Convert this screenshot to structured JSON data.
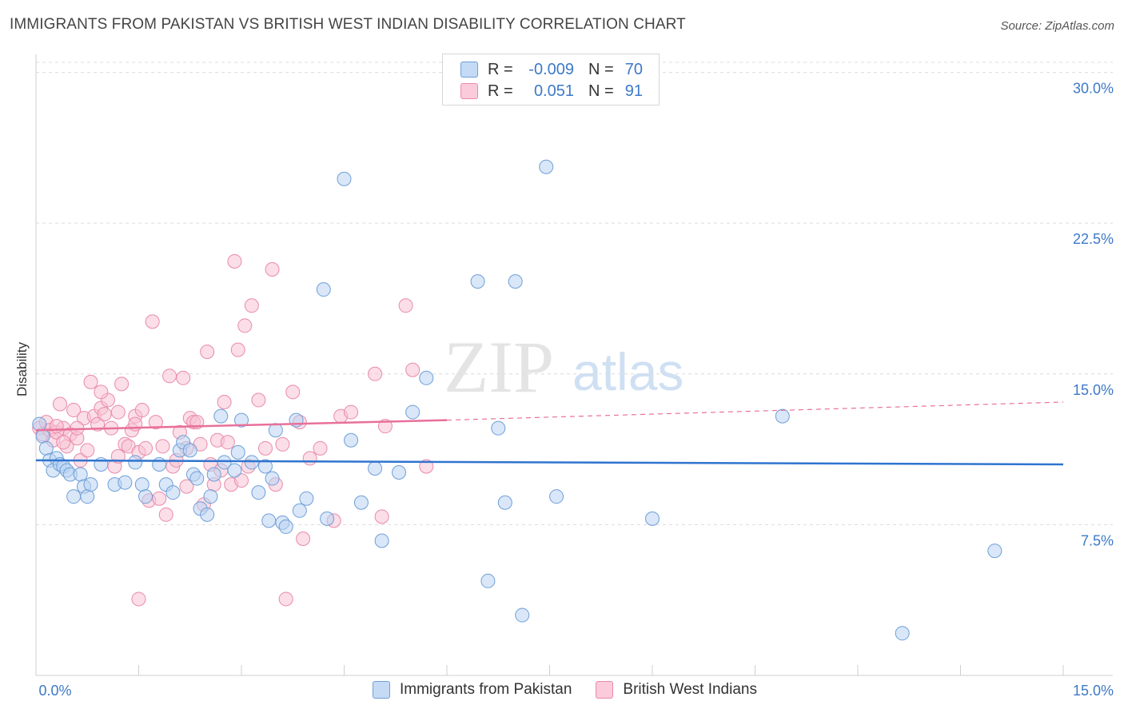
{
  "title": "IMMIGRANTS FROM PAKISTAN VS BRITISH WEST INDIAN DISABILITY CORRELATION CHART",
  "source": "Source: ZipAtlas.com",
  "colors": {
    "blue_fill": "#b9d3f2",
    "blue_stroke": "#6f9fd8",
    "blue_line": "#2f74cf",
    "pink_fill": "#f8c2d4",
    "pink_stroke": "#e98aaa",
    "pink_line": "#e8709a",
    "grid": "#dcdcdc",
    "axis_text": "#3d79c8"
  },
  "legend": {
    "rows": [
      {
        "r_label": "R =",
        "r_value": "-0.009",
        "n_label": "N =",
        "n_value": "70"
      },
      {
        "r_label": "R =",
        "r_value": "0.051",
        "n_label": "N =",
        "n_value": "91"
      }
    ]
  },
  "watermark": {
    "zip": "ZIP",
    "atlas": "atlas"
  },
  "chart_data": {
    "type": "scatter",
    "title": "IMMIGRANTS FROM PAKISTAN VS BRITISH WEST INDIAN DISABILITY CORRELATION CHART",
    "xlabel": "",
    "ylabel": "Disability",
    "xlim": [
      0,
      15
    ],
    "ylim": [
      0,
      30.5
    ],
    "x_tick_labels": [
      "0.0%",
      "15.0%"
    ],
    "y_ticks": [
      7.5,
      15.0,
      22.5,
      30.0
    ],
    "y_tick_labels": [
      "7.5%",
      "15.0%",
      "22.5%",
      "30.0%"
    ],
    "grid": true,
    "legend_position": "top-center",
    "series": [
      {
        "name": "Immigrants from Pakistan",
        "color": "blue",
        "trend": {
          "x0": 0.0,
          "y0": 10.7,
          "x1": 15.0,
          "y1": 10.5
        },
        "points": [
          [
            0.05,
            12.5
          ],
          [
            0.1,
            11.9
          ],
          [
            0.15,
            11.3
          ],
          [
            0.2,
            10.7
          ],
          [
            0.25,
            10.2
          ],
          [
            0.3,
            10.8
          ],
          [
            0.35,
            10.5
          ],
          [
            0.4,
            10.4
          ],
          [
            0.45,
            10.2
          ],
          [
            0.5,
            10.0
          ],
          [
            0.55,
            8.9
          ],
          [
            0.65,
            10.0
          ],
          [
            0.7,
            9.4
          ],
          [
            0.75,
            8.9
          ],
          [
            0.8,
            9.5
          ],
          [
            0.95,
            10.5
          ],
          [
            1.15,
            9.5
          ],
          [
            1.3,
            9.6
          ],
          [
            1.45,
            10.6
          ],
          [
            1.55,
            9.5
          ],
          [
            1.6,
            8.9
          ],
          [
            1.8,
            10.5
          ],
          [
            1.9,
            9.5
          ],
          [
            2.0,
            9.1
          ],
          [
            2.1,
            11.2
          ],
          [
            2.15,
            11.6
          ],
          [
            2.25,
            11.2
          ],
          [
            2.3,
            10.0
          ],
          [
            2.35,
            9.8
          ],
          [
            2.4,
            8.3
          ],
          [
            2.5,
            8.0
          ],
          [
            2.55,
            8.9
          ],
          [
            2.6,
            10.0
          ],
          [
            2.7,
            12.9
          ],
          [
            2.75,
            10.6
          ],
          [
            2.9,
            10.2
          ],
          [
            2.95,
            11.1
          ],
          [
            3.0,
            12.7
          ],
          [
            3.15,
            10.6
          ],
          [
            3.25,
            9.1
          ],
          [
            3.35,
            10.4
          ],
          [
            3.4,
            7.7
          ],
          [
            3.45,
            9.8
          ],
          [
            3.5,
            12.2
          ],
          [
            3.6,
            7.6
          ],
          [
            3.65,
            7.4
          ],
          [
            3.8,
            12.7
          ],
          [
            3.85,
            8.2
          ],
          [
            3.95,
            8.8
          ],
          [
            4.2,
            19.2
          ],
          [
            4.25,
            7.8
          ],
          [
            4.5,
            24.7
          ],
          [
            4.6,
            11.7
          ],
          [
            4.75,
            8.6
          ],
          [
            4.95,
            10.3
          ],
          [
            5.05,
            6.7
          ],
          [
            5.3,
            10.1
          ],
          [
            5.5,
            13.1
          ],
          [
            5.7,
            14.8
          ],
          [
            6.45,
            19.6
          ],
          [
            6.6,
            4.7
          ],
          [
            6.75,
            12.3
          ],
          [
            6.85,
            8.6
          ],
          [
            7.0,
            19.6
          ],
          [
            7.1,
            3.0
          ],
          [
            7.45,
            25.3
          ],
          [
            7.6,
            8.9
          ],
          [
            9.0,
            7.8
          ],
          [
            10.9,
            12.9
          ],
          [
            14.0,
            6.2
          ],
          [
            12.65,
            2.1
          ]
        ]
      },
      {
        "name": "British West Indians",
        "color": "pink",
        "trend": {
          "x0": 0.0,
          "y0": 12.2,
          "x1": 6.0,
          "y1": 12.7,
          "dash_x1": 15.0,
          "dash_y1": 13.6
        },
        "points": [
          [
            0.05,
            12.3
          ],
          [
            0.1,
            12.0
          ],
          [
            0.15,
            12.6
          ],
          [
            0.2,
            12.2
          ],
          [
            0.25,
            11.7
          ],
          [
            0.3,
            12.1
          ],
          [
            0.35,
            13.5
          ],
          [
            0.4,
            12.3
          ],
          [
            0.45,
            11.4
          ],
          [
            0.5,
            12.0
          ],
          [
            0.55,
            13.2
          ],
          [
            0.6,
            11.8
          ],
          [
            0.65,
            10.7
          ],
          [
            0.7,
            12.8
          ],
          [
            0.75,
            11.2
          ],
          [
            0.8,
            14.6
          ],
          [
            0.85,
            12.9
          ],
          [
            0.9,
            12.5
          ],
          [
            0.95,
            13.3
          ],
          [
            1.0,
            13.0
          ],
          [
            1.05,
            13.7
          ],
          [
            1.1,
            12.3
          ],
          [
            1.15,
            10.4
          ],
          [
            1.2,
            13.1
          ],
          [
            1.25,
            14.5
          ],
          [
            1.3,
            11.5
          ],
          [
            1.35,
            11.4
          ],
          [
            1.4,
            12.2
          ],
          [
            1.45,
            12.9
          ],
          [
            1.5,
            11.1
          ],
          [
            1.55,
            13.2
          ],
          [
            1.6,
            11.3
          ],
          [
            1.65,
            8.7
          ],
          [
            1.7,
            17.6
          ],
          [
            1.75,
            12.6
          ],
          [
            1.8,
            8.8
          ],
          [
            1.85,
            11.4
          ],
          [
            1.9,
            8.0
          ],
          [
            1.95,
            14.9
          ],
          [
            2.0,
            10.4
          ],
          [
            2.05,
            10.7
          ],
          [
            2.1,
            12.1
          ],
          [
            2.15,
            14.8
          ],
          [
            2.2,
            11.3
          ],
          [
            2.25,
            12.8
          ],
          [
            2.3,
            12.6
          ],
          [
            2.35,
            12.6
          ],
          [
            2.4,
            11.5
          ],
          [
            2.45,
            8.5
          ],
          [
            2.5,
            16.1
          ],
          [
            2.55,
            10.5
          ],
          [
            2.6,
            9.5
          ],
          [
            2.65,
            11.7
          ],
          [
            2.7,
            10.2
          ],
          [
            2.75,
            13.6
          ],
          [
            2.8,
            11.6
          ],
          [
            2.85,
            9.5
          ],
          [
            2.9,
            20.6
          ],
          [
            2.95,
            16.2
          ],
          [
            3.0,
            9.7
          ],
          [
            3.05,
            17.4
          ],
          [
            3.1,
            10.4
          ],
          [
            3.15,
            18.4
          ],
          [
            3.25,
            13.7
          ],
          [
            3.35,
            11.3
          ],
          [
            3.45,
            20.2
          ],
          [
            3.5,
            9.5
          ],
          [
            3.6,
            11.5
          ],
          [
            3.65,
            3.8
          ],
          [
            3.75,
            14.1
          ],
          [
            3.85,
            12.6
          ],
          [
            3.9,
            6.8
          ],
          [
            4.0,
            10.8
          ],
          [
            4.15,
            11.3
          ],
          [
            4.35,
            7.7
          ],
          [
            4.45,
            12.9
          ],
          [
            4.6,
            13.1
          ],
          [
            4.95,
            15.0
          ],
          [
            5.05,
            7.9
          ],
          [
            5.1,
            12.4
          ],
          [
            5.4,
            18.4
          ],
          [
            5.5,
            15.2
          ],
          [
            5.7,
            10.4
          ],
          [
            1.5,
            3.8
          ],
          [
            0.3,
            12.4
          ],
          [
            0.4,
            11.6
          ],
          [
            1.2,
            10.9
          ],
          [
            2.2,
            9.4
          ],
          [
            0.95,
            14.1
          ],
          [
            1.45,
            12.5
          ],
          [
            0.6,
            12.3
          ]
        ]
      }
    ]
  },
  "bottom_legend": [
    {
      "label": "Immigrants from Pakistan"
    },
    {
      "label": "British West Indians"
    }
  ]
}
